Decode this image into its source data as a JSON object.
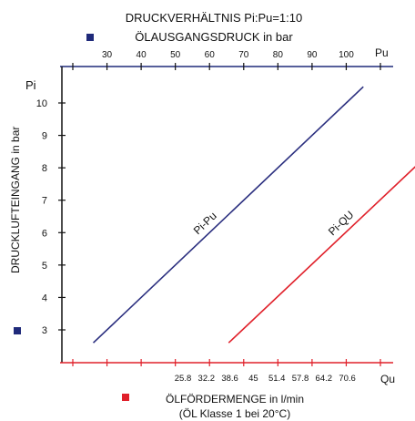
{
  "chart_data": {
    "type": "line",
    "title": "DRUCKVERHÄLTNIS Pi:Pu=1:10",
    "top_axis": {
      "label": "ÖLAUSGANGSDRUCK in bar",
      "unit_symbol": "Pu",
      "ticks": [
        30,
        40,
        50,
        60,
        70,
        80,
        90,
        100
      ],
      "range": [
        20,
        110
      ],
      "marker_color": "#1f2a7a"
    },
    "left_axis": {
      "label": "DRUCKLUFTEINGANG in bar",
      "unit_symbol": "Pi",
      "ticks": [
        3,
        4,
        5,
        6,
        7,
        8,
        9,
        10
      ],
      "range": [
        2,
        11
      ],
      "marker_color": "#1f2a7a"
    },
    "bottom_axis": {
      "label": "ÖLFÖRDERMENGE in l/min",
      "sublabel": "(ÖL Klasse 1 bei 20°C)",
      "unit_symbol": "Qu",
      "ticks": [
        "25.8",
        "32.2",
        "38.6",
        "45",
        "51.4",
        "57.8",
        "64.2",
        "70.6"
      ],
      "marker_color": "#e0202a"
    },
    "series": [
      {
        "name": "Pi-Pu",
        "color": "#2b2f7f",
        "points": [
          [
            26,
            2.6
          ],
          [
            105,
            10.5
          ]
        ]
      },
      {
        "name": "Pi-QU",
        "color": "#e0202a",
        "points": [
          [
            65.6,
            2.6
          ],
          [
            145,
            10.5
          ]
        ]
      }
    ],
    "grid": false,
    "colors": {
      "top_axis_line": "#1f2a7a",
      "bottom_axis_line": "#e0202a"
    }
  }
}
